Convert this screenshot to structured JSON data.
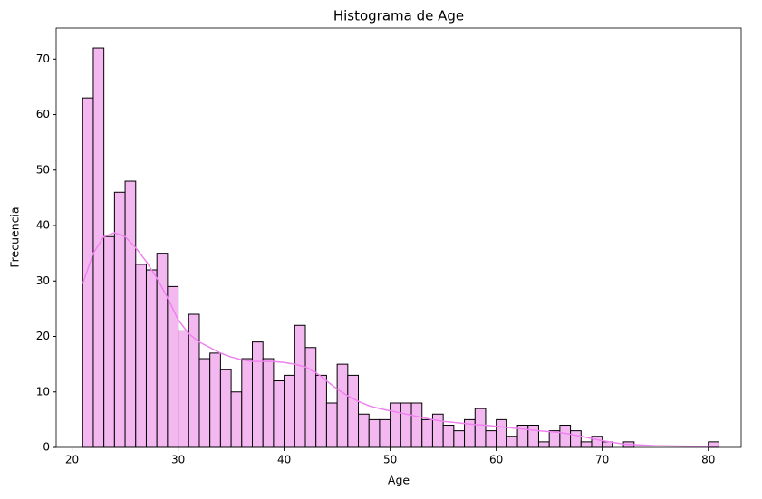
{
  "chart_data": {
    "type": "histogram",
    "title": "Histograma de Age",
    "x_label": "Age",
    "y_label": "Frecuencia",
    "bins": [
      21,
      22,
      23,
      24,
      25,
      26,
      27,
      28,
      29,
      30,
      31,
      32,
      33,
      34,
      35,
      36,
      37,
      38,
      39,
      40,
      41,
      42,
      43,
      44,
      45,
      46,
      47,
      48,
      49,
      50,
      51,
      52,
      53,
      54,
      55,
      56,
      57,
      58,
      59,
      60,
      61,
      62,
      63,
      64,
      65,
      66,
      67,
      68,
      69,
      70,
      71,
      72,
      73,
      74,
      75,
      76,
      77,
      78,
      79,
      80,
      81
    ],
    "values": [
      63,
      72,
      38,
      46,
      48,
      33,
      32,
      35,
      29,
      21,
      24,
      16,
      17,
      14,
      10,
      16,
      19,
      16,
      12,
      13,
      22,
      18,
      13,
      8,
      15,
      13,
      6,
      5,
      5,
      8,
      8,
      8,
      5,
      6,
      4,
      3,
      5,
      7,
      3,
      5,
      2,
      4,
      4,
      1,
      3,
      4,
      3,
      1,
      2,
      1,
      0,
      1,
      0,
      0,
      0,
      0,
      0,
      0,
      0,
      1
    ],
    "color": "#f4b8f0",
    "edgecolor": "#000000",
    "kde": {
      "color": "#ee82ee",
      "x": [
        21,
        22,
        23,
        24,
        25,
        26,
        27,
        28,
        29,
        30,
        31,
        32,
        33,
        34,
        35,
        36,
        37,
        38,
        39,
        40,
        41,
        42,
        43,
        44,
        45,
        46,
        47,
        48,
        49,
        50,
        51,
        52,
        53,
        54,
        55,
        56,
        57,
        58,
        59,
        60,
        62,
        64,
        66,
        68,
        70,
        72,
        75,
        78,
        81
      ],
      "y": [
        29.5,
        35,
        38,
        38.7,
        38,
        36,
        33.5,
        30.5,
        27,
        23,
        20.5,
        19,
        18,
        17,
        16.3,
        15.8,
        15.5,
        15.5,
        15.5,
        15.3,
        15,
        14.5,
        13.5,
        12,
        10.5,
        9.3,
        8.3,
        7.5,
        7,
        6.6,
        6.2,
        5.8,
        5.4,
        5,
        4.7,
        4.5,
        4.3,
        4.1,
        4,
        3.8,
        3.4,
        3,
        2.7,
        2,
        1.2,
        0.6,
        0.3,
        0.2,
        0.2
      ]
    },
    "xlim": [
      18.5,
      83.1
    ],
    "ylim": [
      0,
      75.6
    ],
    "xticks": [
      20,
      30,
      40,
      50,
      60,
      70,
      80
    ],
    "yticks": [
      0,
      10,
      20,
      30,
      40,
      50,
      60,
      70
    ]
  }
}
